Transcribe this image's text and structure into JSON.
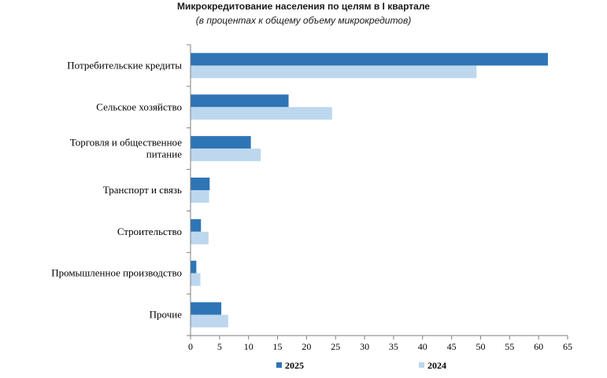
{
  "chart_data": {
    "type": "bar",
    "orientation": "horizontal",
    "title": "Микрокредитование населения по целям в I квартале",
    "subtitle": "(в процентах к общему объему микрокредитов)",
    "categories": [
      [
        "Потребительские  кредиты"
      ],
      [
        "Сельское хозяйство"
      ],
      [
        "Торговля и общественное",
        "питание"
      ],
      [
        "Транспорт и связь"
      ],
      [
        "Строительство"
      ],
      [
        "Промышленное производство"
      ],
      [
        "Прочие"
      ]
    ],
    "series": [
      {
        "name": "2025",
        "color": "#2e75b6",
        "values": [
          61.6,
          16.9,
          10.4,
          3.3,
          1.8,
          1.0,
          5.3
        ]
      },
      {
        "name": "2024",
        "color": "#bdd7ee",
        "values": [
          49.3,
          24.4,
          12.1,
          3.2,
          3.1,
          1.7,
          6.5
        ]
      }
    ],
    "xlim": [
      0,
      65
    ],
    "xticks": [
      0,
      5,
      10,
      15,
      20,
      25,
      30,
      35,
      40,
      45,
      50,
      55,
      60,
      65
    ],
    "grid": false,
    "legend_position": "bottom"
  }
}
